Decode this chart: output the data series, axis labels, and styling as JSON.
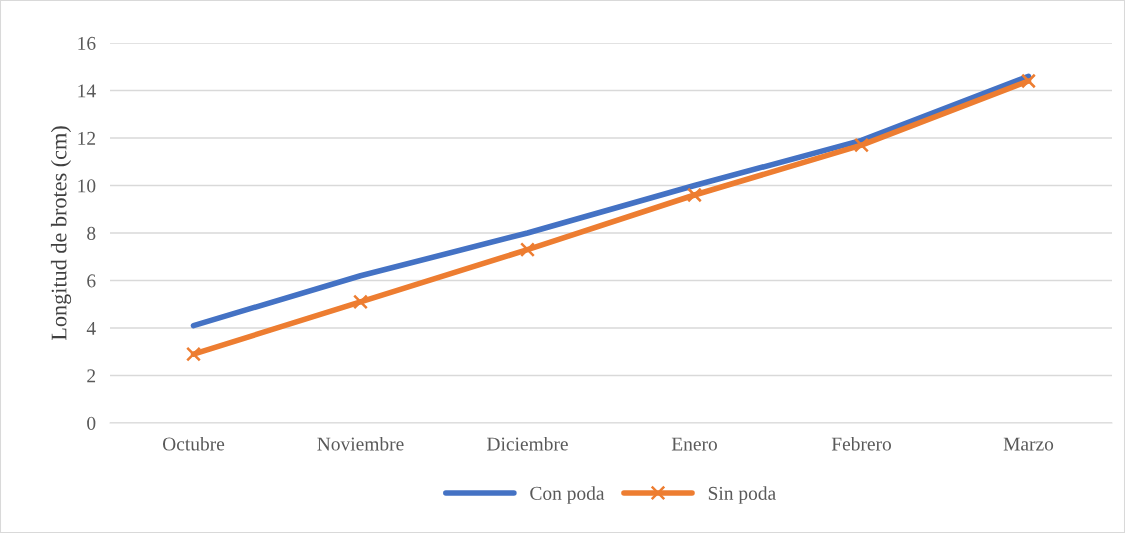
{
  "chart_data": {
    "type": "line",
    "ylabel": "Longitud de brotes (cm)",
    "categories": [
      "Octubre",
      "Noviembre",
      "Diciembre",
      "Enero",
      "Febrero",
      "Marzo"
    ],
    "series": [
      {
        "name": "Con poda",
        "color": "#4472c4",
        "values": [
          4.1,
          6.2,
          8.0,
          10.0,
          11.9,
          14.6
        ],
        "marker": "none"
      },
      {
        "name": "Sin poda",
        "color": "#ed7d31",
        "values": [
          2.9,
          5.1,
          7.3,
          9.6,
          11.7,
          14.4
        ],
        "marker": "cross"
      }
    ],
    "ylim": [
      0,
      16
    ],
    "yticks": [
      0,
      2,
      4,
      6,
      8,
      10,
      12,
      14,
      16
    ],
    "grid": "y",
    "legend": "bottom",
    "line_style": "solid"
  }
}
